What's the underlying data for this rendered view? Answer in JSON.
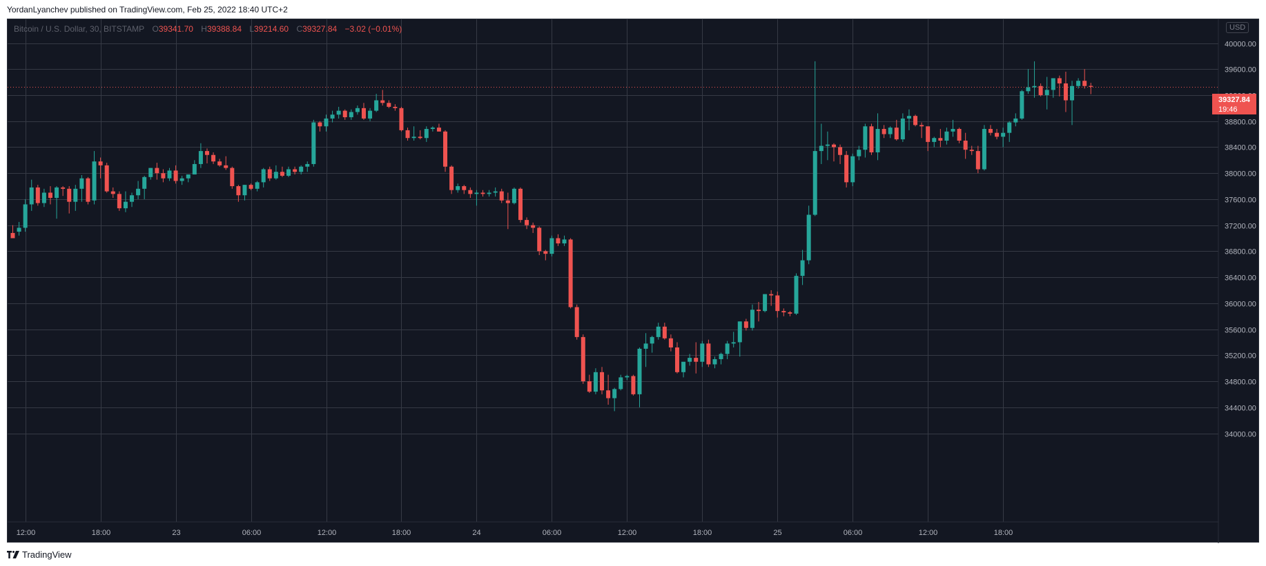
{
  "header": {
    "published_line": "YordanLyanchev published on TradingView.com, Feb 25, 2022 18:40 UTC+2"
  },
  "legend": {
    "symbol": "Bitcoin / U.S. Dollar, 30, BITSTAMP",
    "o_label": "O",
    "o_value": "39341.70",
    "h_label": "H",
    "h_value": "39388.84",
    "l_label": "L",
    "l_value": "39214.60",
    "c_label": "C",
    "c_value": "39327.84",
    "change": "−3.02 (−0.01%)"
  },
  "currency_badge": "USD",
  "last_price": {
    "price": "39327.84",
    "countdown": "19:46"
  },
  "brand": {
    "name": "TradingView"
  },
  "colors": {
    "background": "#131722",
    "grid": "#363a45",
    "up": "#26a69a",
    "down": "#ef5350",
    "axis_text": "#b2b5be"
  },
  "chart_data": {
    "type": "candlestick",
    "title": "Bitcoin / U.S. Dollar, 30, BITSTAMP",
    "ylim": [
      33800,
      40400
    ],
    "y_ticks": [
      "34000.00",
      "34400.00",
      "34800.00",
      "35200.00",
      "35600.00",
      "36000.00",
      "36400.00",
      "36800.00",
      "37200.00",
      "37600.00",
      "38000.00",
      "38400.00",
      "38800.00",
      "39200.00",
      "39600.00",
      "40000.00"
    ],
    "x_ticks": [
      {
        "index": 2,
        "label": "12:00"
      },
      {
        "index": 14,
        "label": "18:00"
      },
      {
        "index": 26,
        "label": "23"
      },
      {
        "index": 38,
        "label": "06:00"
      },
      {
        "index": 50,
        "label": "12:00"
      },
      {
        "index": 62,
        "label": "18:00"
      },
      {
        "index": 74,
        "label": "24"
      },
      {
        "index": 86,
        "label": "06:00"
      },
      {
        "index": 98,
        "label": "12:00"
      },
      {
        "index": 110,
        "label": "18:00"
      },
      {
        "index": 122,
        "label": "25"
      },
      {
        "index": 134,
        "label": "06:00"
      },
      {
        "index": 146,
        "label": "12:00"
      },
      {
        "index": 158,
        "label": "18:00"
      }
    ],
    "last_price": 39327.84,
    "candles": [
      [
        37080,
        37200,
        37000,
        37000
      ],
      [
        37100,
        37250,
        37040,
        37160
      ],
      [
        37160,
        37600,
        37100,
        37520
      ],
      [
        37520,
        37900,
        37420,
        37780
      ],
      [
        37780,
        37820,
        37500,
        37540
      ],
      [
        37540,
        37760,
        37480,
        37700
      ],
      [
        37700,
        37800,
        37520,
        37620
      ],
      [
        37620,
        37800,
        37300,
        37780
      ],
      [
        37780,
        37800,
        37650,
        37760
      ],
      [
        37760,
        37800,
        37380,
        37560
      ],
      [
        37560,
        37820,
        37420,
        37760
      ],
      [
        37760,
        37970,
        37560,
        37920
      ],
      [
        37920,
        37940,
        37520,
        37560
      ],
      [
        37580,
        38340,
        37520,
        38180
      ],
      [
        38180,
        38240,
        37920,
        38120
      ],
      [
        38120,
        38160,
        37700,
        37720
      ],
      [
        37720,
        37780,
        37620,
        37680
      ],
      [
        37680,
        37720,
        37420,
        37460
      ],
      [
        37460,
        37720,
        37400,
        37560
      ],
      [
        37560,
        37700,
        37480,
        37660
      ],
      [
        37660,
        37880,
        37600,
        37760
      ],
      [
        37760,
        37960,
        37600,
        37940
      ],
      [
        37940,
        38080,
        37900,
        38080
      ],
      [
        38080,
        38160,
        37900,
        38000
      ],
      [
        38000,
        38060,
        37860,
        37920
      ],
      [
        37920,
        38080,
        37880,
        38040
      ],
      [
        38040,
        38120,
        37840,
        37880
      ],
      [
        37880,
        37960,
        37820,
        37920
      ],
      [
        37920,
        37980,
        37860,
        37980
      ],
      [
        37980,
        38200,
        37980,
        38140
      ],
      [
        38140,
        38460,
        38080,
        38340
      ],
      [
        38340,
        38380,
        38150,
        38280
      ],
      [
        38280,
        38320,
        38140,
        38180
      ],
      [
        38180,
        38220,
        38100,
        38120
      ],
      [
        38120,
        38260,
        38050,
        38080
      ],
      [
        38080,
        38100,
        37760,
        37800
      ],
      [
        37800,
        37820,
        37560,
        37660
      ],
      [
        37660,
        37820,
        37580,
        37820
      ],
      [
        37820,
        37840,
        37740,
        37760
      ],
      [
        37760,
        37880,
        37720,
        37860
      ],
      [
        37860,
        38080,
        37780,
        38060
      ],
      [
        38060,
        38100,
        37880,
        37920
      ],
      [
        37920,
        38120,
        37900,
        38020
      ],
      [
        38020,
        38100,
        37940,
        37960
      ],
      [
        37960,
        38100,
        37940,
        38060
      ],
      [
        38060,
        38100,
        37980,
        38020
      ],
      [
        38020,
        38120,
        37980,
        38100
      ],
      [
        38100,
        38180,
        38020,
        38140
      ],
      [
        38140,
        38820,
        38100,
        38780
      ],
      [
        38780,
        38800,
        38640,
        38720
      ],
      [
        38720,
        38900,
        38640,
        38840
      ],
      [
        38840,
        38960,
        38780,
        38900
      ],
      [
        38900,
        39020,
        38840,
        38960
      ],
      [
        38960,
        38980,
        38820,
        38860
      ],
      [
        38860,
        38980,
        38820,
        38940
      ],
      [
        38940,
        39040,
        38900,
        39000
      ],
      [
        39000,
        39080,
        38820,
        38840
      ],
      [
        38840,
        39000,
        38800,
        38960
      ],
      [
        38960,
        39220,
        38940,
        39120
      ],
      [
        39120,
        39280,
        39040,
        39080
      ],
      [
        39080,
        39120,
        39000,
        39020
      ],
      [
        39020,
        39060,
        38960,
        39000
      ],
      [
        39000,
        39020,
        38640,
        38660
      ],
      [
        38660,
        38700,
        38500,
        38540
      ],
      [
        38540,
        38720,
        38500,
        38560
      ],
      [
        38560,
        38660,
        38520,
        38540
      ],
      [
        38540,
        38720,
        38480,
        38680
      ],
      [
        38680,
        38720,
        38640,
        38700
      ],
      [
        38700,
        38760,
        38640,
        38640
      ],
      [
        38640,
        38660,
        38020,
        38100
      ],
      [
        38100,
        38120,
        37680,
        37740
      ],
      [
        37740,
        37840,
        37700,
        37800
      ],
      [
        37800,
        37820,
        37680,
        37740
      ],
      [
        37740,
        37780,
        37620,
        37680
      ],
      [
        37680,
        37740,
        37500,
        37700
      ],
      [
        37700,
        37740,
        37640,
        37680
      ],
      [
        37680,
        37740,
        37640,
        37700
      ],
      [
        37700,
        37780,
        37640,
        37720
      ],
      [
        37720,
        37760,
        37540,
        37580
      ],
      [
        37580,
        37700,
        37140,
        37540
      ],
      [
        37540,
        37780,
        37520,
        37760
      ],
      [
        37760,
        37780,
        37240,
        37280
      ],
      [
        37280,
        37320,
        37140,
        37200
      ],
      [
        37200,
        37240,
        37080,
        37160
      ],
      [
        37160,
        37180,
        36740,
        36800
      ],
      [
        36800,
        36820,
        36660,
        36760
      ],
      [
        36760,
        37040,
        36720,
        37000
      ],
      [
        37000,
        37060,
        36880,
        36920
      ],
      [
        36920,
        37040,
        36880,
        36980
      ],
      [
        36980,
        37000,
        35920,
        35940
      ],
      [
        35940,
        35980,
        35440,
        35480
      ],
      [
        35480,
        35520,
        34760,
        34800
      ],
      [
        34800,
        34900,
        34620,
        34640
      ],
      [
        34640,
        35000,
        34600,
        34940
      ],
      [
        34940,
        35020,
        34600,
        34660
      ],
      [
        34660,
        34900,
        34440,
        34540
      ],
      [
        34540,
        34700,
        34340,
        34680
      ],
      [
        34680,
        34900,
        34660,
        34860
      ],
      [
        34860,
        34900,
        34820,
        34880
      ],
      [
        34880,
        34900,
        34580,
        34600
      ],
      [
        34600,
        35320,
        34400,
        35300
      ],
      [
        35300,
        35540,
        35020,
        35380
      ],
      [
        35380,
        35500,
        35240,
        35480
      ],
      [
        35480,
        35700,
        35440,
        35640
      ],
      [
        35640,
        35700,
        35440,
        35460
      ],
      [
        35460,
        35520,
        35260,
        35320
      ],
      [
        35320,
        35400,
        34920,
        34940
      ],
      [
        34940,
        35060,
        34860,
        35100
      ],
      [
        35100,
        35220,
        35040,
        35160
      ],
      [
        35160,
        35400,
        34920,
        35100
      ],
      [
        35100,
        35420,
        35020,
        35380
      ],
      [
        35380,
        35440,
        35020,
        35060
      ],
      [
        35060,
        35180,
        35000,
        35140
      ],
      [
        35140,
        35240,
        35060,
        35220
      ],
      [
        35220,
        35420,
        35140,
        35380
      ],
      [
        35380,
        35560,
        35320,
        35400
      ],
      [
        35400,
        35720,
        35180,
        35720
      ],
      [
        35720,
        35760,
        35580,
        35620
      ],
      [
        35620,
        35980,
        35580,
        35900
      ],
      [
        35900,
        36020,
        35720,
        35880
      ],
      [
        35880,
        36140,
        35860,
        36140
      ],
      [
        36140,
        36200,
        35960,
        36120
      ],
      [
        36120,
        36180,
        35780,
        35880
      ],
      [
        35880,
        35920,
        35800,
        35860
      ],
      [
        35860,
        35880,
        35800,
        35840
      ],
      [
        35840,
        36460,
        35820,
        36420
      ],
      [
        36420,
        36820,
        36280,
        36660
      ],
      [
        36660,
        37500,
        36600,
        37360
      ],
      [
        37360,
        39720,
        37340,
        38340
      ],
      [
        38340,
        38760,
        38140,
        38420
      ],
      [
        38420,
        38640,
        38200,
        38440
      ],
      [
        38440,
        38460,
        38180,
        38400
      ],
      [
        38400,
        38440,
        38140,
        38280
      ],
      [
        38280,
        38340,
        37780,
        37860
      ],
      [
        37860,
        38300,
        37800,
        38260
      ],
      [
        38260,
        38420,
        38200,
        38360
      ],
      [
        38360,
        38760,
        38240,
        38720
      ],
      [
        38720,
        38760,
        38280,
        38320
      ],
      [
        38320,
        38920,
        38200,
        38680
      ],
      [
        38680,
        38740,
        38540,
        38600
      ],
      [
        38600,
        38720,
        38540,
        38700
      ],
      [
        38700,
        38820,
        38500,
        38520
      ],
      [
        38520,
        38920,
        38480,
        38840
      ],
      [
        38840,
        38980,
        38660,
        38880
      ],
      [
        38880,
        38900,
        38720,
        38740
      ],
      [
        38740,
        38780,
        38540,
        38720
      ],
      [
        38720,
        38720,
        38340,
        38480
      ],
      [
        38480,
        38560,
        38400,
        38540
      ],
      [
        38540,
        38680,
        38400,
        38500
      ],
      [
        38500,
        38700,
        38440,
        38640
      ],
      [
        38640,
        38820,
        38560,
        38680
      ],
      [
        38680,
        38700,
        38460,
        38500
      ],
      [
        38500,
        38620,
        38220,
        38360
      ],
      [
        38360,
        38420,
        38280,
        38340
      ],
      [
        38340,
        38420,
        38000,
        38060
      ],
      [
        38060,
        38740,
        38040,
        38680
      ],
      [
        38680,
        38740,
        38580,
        38620
      ],
      [
        38620,
        38680,
        38520,
        38560
      ],
      [
        38560,
        38700,
        38400,
        38620
      ],
      [
        38620,
        38800,
        38480,
        38780
      ],
      [
        38780,
        38920,
        38720,
        38840
      ],
      [
        38840,
        39280,
        38820,
        39260
      ],
      [
        39260,
        39600,
        39220,
        39320
      ],
      [
        39320,
        39720,
        39160,
        39340
      ],
      [
        39340,
        39380,
        39180,
        39200
      ],
      [
        39200,
        39480,
        38980,
        39280
      ],
      [
        39280,
        39420,
        39160,
        39460
      ],
      [
        39460,
        39500,
        39180,
        39380
      ],
      [
        39380,
        39560,
        38940,
        39120
      ],
      [
        39120,
        39420,
        38740,
        39340
      ],
      [
        39340,
        39460,
        39300,
        39420
      ],
      [
        39420,
        39600,
        39300,
        39340
      ],
      [
        39341.7,
        39388.84,
        39214.6,
        39327.84
      ]
    ]
  }
}
